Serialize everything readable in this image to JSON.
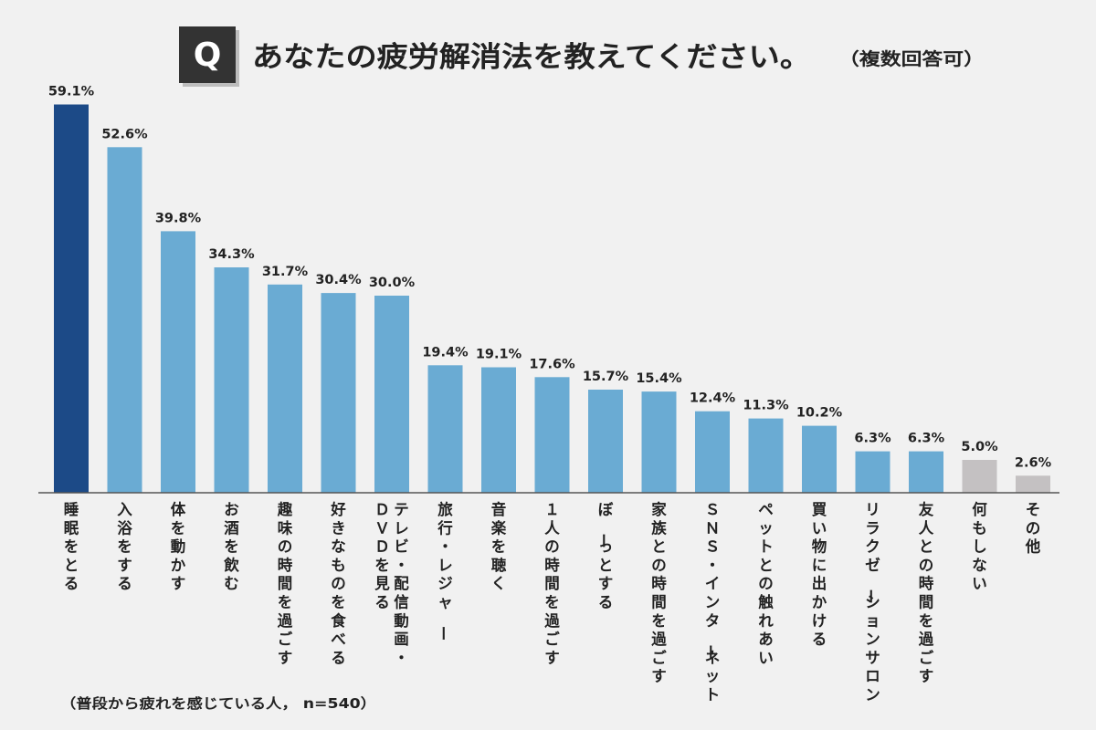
{
  "question_mark": "Q",
  "chart_data": {
    "type": "bar",
    "title": "あなたの疲労解消法を教えてください。",
    "subtitle": "（複数回答可）",
    "note": "（普段から疲れを感じている人， n=540）",
    "unit": "%",
    "ylim": [
      0,
      60
    ],
    "grid": false,
    "categories": [
      "睡眠をとる",
      "入浴をする",
      "体を動かす",
      "お酒を飲む",
      "趣味の時間を過ごす",
      "好きなものを食べる",
      "テレビ・配信動画・DVDを見る",
      "旅行・レジャー",
      "音楽を聴く",
      "１人の時間を過ごす",
      "ぼーっとする",
      "家族との時間を過ごす",
      "SNS・インターネット",
      "ペットとの触れあい",
      "買い物に出かける",
      "リラクゼーションサロン",
      "友人との時間を過ごす",
      "何もしない",
      "その他"
    ],
    "category_lines": [
      [
        "睡眠をとる"
      ],
      [
        "入浴をする"
      ],
      [
        "体を動かす"
      ],
      [
        "お酒を飲む"
      ],
      [
        "趣味の時間を過ごす"
      ],
      [
        "好きなものを食べる"
      ],
      [
        "テレビ・配信動画・",
        "ＤＶＤを見る"
      ],
      [
        "旅行・レジャー"
      ],
      [
        "音楽を聴く"
      ],
      [
        "１人の時間を過ごす"
      ],
      [
        "ぼーっとする"
      ],
      [
        "家族との時間を過ごす"
      ],
      [
        "ＳＮＳ・インターネット"
      ],
      [
        "ペットとの触れあい"
      ],
      [
        "買い物に出かける"
      ],
      [
        "リラクゼーションサロン"
      ],
      [
        "友人との時間を過ごす"
      ],
      [
        "何もしない"
      ],
      [
        "その他"
      ]
    ],
    "values": [
      59.1,
      52.6,
      39.8,
      34.3,
      31.7,
      30.4,
      30.0,
      19.4,
      19.1,
      17.6,
      15.7,
      15.4,
      12.4,
      11.3,
      10.2,
      6.3,
      6.3,
      5.0,
      2.6
    ],
    "value_labels": [
      "59.1%",
      "52.6%",
      "39.8%",
      "34.3%",
      "31.7%",
      "30.4%",
      "30.0%",
      "19.4%",
      "19.1%",
      "17.6%",
      "15.7%",
      "15.4%",
      "12.4%",
      "11.3%",
      "10.2%",
      "6.3%",
      "6.3%",
      "5.0%",
      "2.6%"
    ],
    "bar_groups": [
      "top",
      "main",
      "main",
      "main",
      "main",
      "main",
      "main",
      "main",
      "main",
      "main",
      "main",
      "main",
      "main",
      "main",
      "main",
      "main",
      "main",
      "muted",
      "muted"
    ]
  },
  "colors": {
    "background": "#f1f1f1",
    "top": "#1c4a87",
    "main": "#6aabd3",
    "muted": "#c4c1c2",
    "q_box": "#333333",
    "text": "#222222",
    "axis": "#555555"
  }
}
